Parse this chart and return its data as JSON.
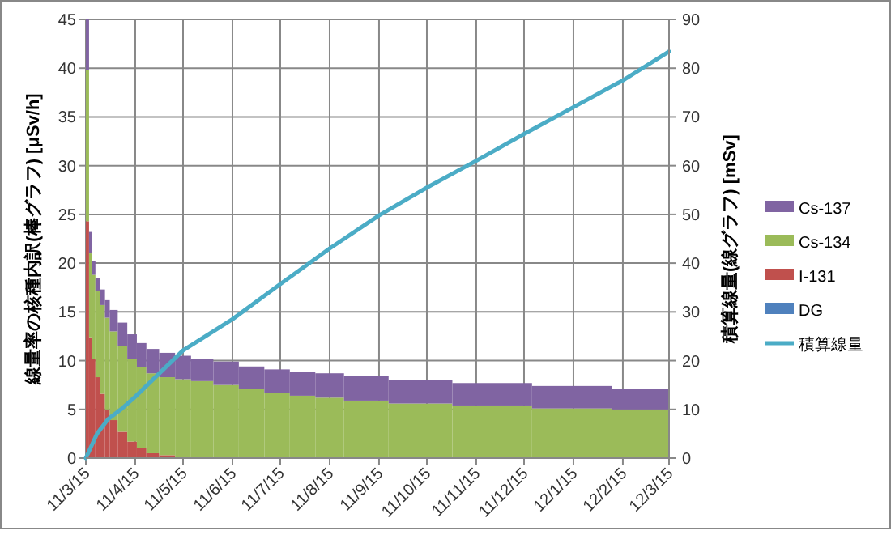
{
  "chart_data": {
    "type": "bar",
    "stacked": true,
    "ylabel": "線量率の核種内訳(棒グラフ) [μSv/h]",
    "y2label": "積算線量(線グラフ) [mSv]",
    "x": [
      "2011-03-16",
      "2011-03-18",
      "2011-03-20",
      "2011-03-22T12:00",
      "2011-03-25T12:00",
      "2011-03-28T12:00",
      "2011-04-01T12:00",
      "2011-04-07",
      "2011-04-13",
      "2011-04-19",
      "2011-04-26",
      "2011-05-05",
      "2011-05-15",
      "2011-05-27",
      "2011-06-11",
      "2011-06-27",
      "2011-07-13",
      "2011-07-29",
      "2011-08-15",
      "2011-09-07",
      "2011-10-11",
      "2011-11-25",
      "2012-01-14",
      "2012-02-26"
    ],
    "xlim": [
      "2011-03-15",
      "2012-03-15"
    ],
    "xticks": [
      {
        "value": "2011-03-15",
        "label": "11/3/15"
      },
      {
        "value": "2011-04-15",
        "label": "11/4/15"
      },
      {
        "value": "2011-05-15",
        "label": "11/5/15"
      },
      {
        "value": "2011-06-15",
        "label": "11/6/15"
      },
      {
        "value": "2011-07-15",
        "label": "11/7/15"
      },
      {
        "value": "2011-08-15",
        "label": "11/8/15"
      },
      {
        "value": "2011-09-15",
        "label": "11/9/15"
      },
      {
        "value": "2011-10-15",
        "label": "11/10/15"
      },
      {
        "value": "2011-11-15",
        "label": "11/11/15"
      },
      {
        "value": "2011-12-15",
        "label": "11/12/15"
      },
      {
        "value": "2012-01-15",
        "label": "12/1/15"
      },
      {
        "value": "2012-02-15",
        "label": "12/2/15"
      },
      {
        "value": "2012-03-15",
        "label": "12/3/15"
      }
    ],
    "ylim": [
      0,
      45
    ],
    "yticks": [
      0,
      5,
      10,
      15,
      20,
      25,
      30,
      35,
      40,
      45
    ],
    "y2lim": [
      0,
      90
    ],
    "y2ticks": [
      0,
      10,
      20,
      30,
      40,
      50,
      60,
      70,
      80,
      90
    ],
    "grid": true,
    "legend": "right",
    "series": [
      {
        "name": "DG",
        "color": "#4f81bd",
        "values": [
          0,
          0,
          0,
          0,
          0,
          0,
          0,
          0,
          0,
          0,
          0,
          0,
          0,
          0,
          0,
          0,
          0,
          0,
          0,
          0,
          0,
          0,
          0,
          0
        ]
      },
      {
        "name": "I-131",
        "color": "#c0504d",
        "values": [
          24.3,
          12.4,
          10.2,
          8.3,
          6.6,
          5.0,
          3.9,
          2.7,
          1.7,
          1.0,
          0.5,
          0.3,
          0,
          0,
          0,
          0,
          0,
          0,
          0,
          0,
          0,
          0,
          0,
          0
        ]
      },
      {
        "name": "Cs-134",
        "color": "#9bbb59",
        "values": [
          15.5,
          8.6,
          8.6,
          8.8,
          9.1,
          9.4,
          9.1,
          8.8,
          8.5,
          8.3,
          8.2,
          8.0,
          8.1,
          7.9,
          7.5,
          7.1,
          6.7,
          6.4,
          6.2,
          5.9,
          5.6,
          5.4,
          5.1,
          5.0
        ]
      },
      {
        "name": "Cs-137",
        "color": "#8064a2",
        "values": [
          5.2,
          2.2,
          1.4,
          1.4,
          1.6,
          1.8,
          2.2,
          2.4,
          2.5,
          2.5,
          2.5,
          2.5,
          2.4,
          2.3,
          2.4,
          2.3,
          2.4,
          2.4,
          2.5,
          2.5,
          2.4,
          2.3,
          2.3,
          2.1
        ]
      },
      {
        "name": "積算線量",
        "type": "line",
        "axis": "y2",
        "color": "#4bacc6",
        "marker": "none",
        "x": [
          "2011-03-15",
          "2011-03-22",
          "2011-03-29",
          "2011-04-06",
          "2011-04-15",
          "2011-05-15",
          "2011-06-15",
          "2011-07-15",
          "2011-08-15",
          "2011-09-15",
          "2011-10-15",
          "2011-11-15",
          "2011-12-15",
          "2012-01-15",
          "2012-02-15",
          "2012-03-15"
        ],
        "values": [
          0,
          5,
          8,
          10,
          12.6,
          22.1,
          28.5,
          35.7,
          43,
          49.8,
          55.5,
          61,
          66.5,
          72,
          77.5,
          83.4
        ]
      }
    ]
  }
}
